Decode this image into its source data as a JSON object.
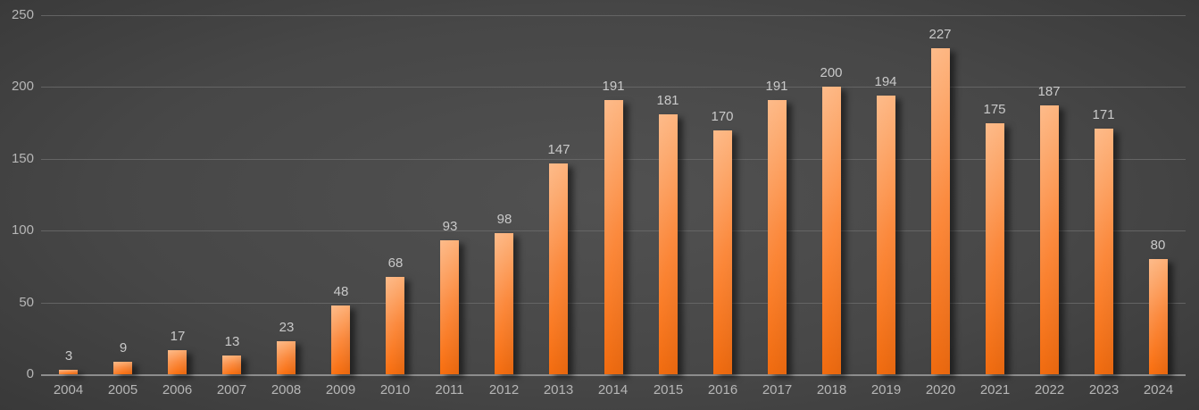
{
  "chart_data": {
    "type": "bar",
    "title": "",
    "xlabel": "",
    "ylabel": "",
    "categories": [
      "2004",
      "2005",
      "2006",
      "2007",
      "2008",
      "2009",
      "2010",
      "2011",
      "2012",
      "2013",
      "2014",
      "2015",
      "2016",
      "2017",
      "2018",
      "2019",
      "2020",
      "2021",
      "2022",
      "2023",
      "2024"
    ],
    "values": [
      3,
      9,
      17,
      13,
      23,
      48,
      68,
      93,
      98,
      147,
      191,
      181,
      170,
      191,
      200,
      194,
      227,
      175,
      187,
      171,
      80
    ],
    "ylim": [
      0,
      250
    ],
    "yticks": [
      0,
      50,
      100,
      150,
      200,
      250
    ],
    "grid": true,
    "legend": "none",
    "colors": {
      "bar_gradient_top": "#fdae74",
      "bar_gradient_mid": "#fb8a3e",
      "bar_gradient_bottom": "#f96f10",
      "background_center": "#515151",
      "background_edge": "#1b1b1b",
      "gridline": "#6a6a6a",
      "axis_baseline": "#8d8d8d",
      "axis_label_text": "#b6b6b6",
      "value_label_text": "#c9c9c9"
    }
  }
}
